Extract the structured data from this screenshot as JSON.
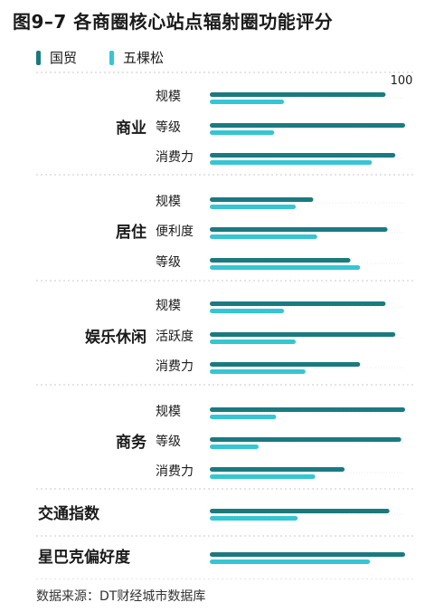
{
  "title": "图9–7 各商圈核心站点辐射圈功能评分",
  "footer": "数据来源：DT财经城市数据库",
  "colors": {
    "guomao": "#1a7a80",
    "wukesong": "#35c6d3",
    "divider": "#c8c8c8",
    "text": "#1a1a1a"
  },
  "chart_data": {
    "type": "bar",
    "orientation": "horizontal",
    "title": "图9–7 各商圈核心站点辐射圈功能评分",
    "xlim": [
      0,
      100
    ],
    "tick_label": "100",
    "legend": [
      "国贸",
      "五棵松"
    ],
    "legend_position": "top-left",
    "series": [
      {
        "name": "国贸"
      },
      {
        "name": "五棵松"
      }
    ],
    "groups": [
      {
        "name": "商业",
        "items": [
          {
            "label": "规模",
            "values": [
              90,
              38
            ]
          },
          {
            "label": "等级",
            "values": [
              100,
              33
            ]
          },
          {
            "label": "消费力",
            "values": [
              95,
              83
            ]
          }
        ]
      },
      {
        "name": "居住",
        "items": [
          {
            "label": "规模",
            "values": [
              53,
              44
            ]
          },
          {
            "label": "便利度",
            "values": [
              91,
              55
            ]
          },
          {
            "label": "等级",
            "values": [
              72,
              77
            ]
          }
        ]
      },
      {
        "name": "娱乐休闲",
        "items": [
          {
            "label": "规模",
            "values": [
              90,
              38
            ]
          },
          {
            "label": "活跃度",
            "values": [
              95,
              44
            ]
          },
          {
            "label": "消费力",
            "values": [
              77,
              49
            ]
          }
        ]
      },
      {
        "name": "商务",
        "items": [
          {
            "label": "规模",
            "values": [
              100,
              34
            ]
          },
          {
            "label": "等级",
            "values": [
              98,
              25
            ]
          },
          {
            "label": "消费力",
            "values": [
              69,
              54
            ]
          }
        ]
      },
      {
        "name": "交通指数",
        "items": [
          {
            "label": "",
            "values": [
              92,
              45
            ]
          }
        ]
      },
      {
        "name": "星巴克偏好度",
        "items": [
          {
            "label": "",
            "values": [
              100,
              82
            ]
          }
        ]
      }
    ]
  }
}
